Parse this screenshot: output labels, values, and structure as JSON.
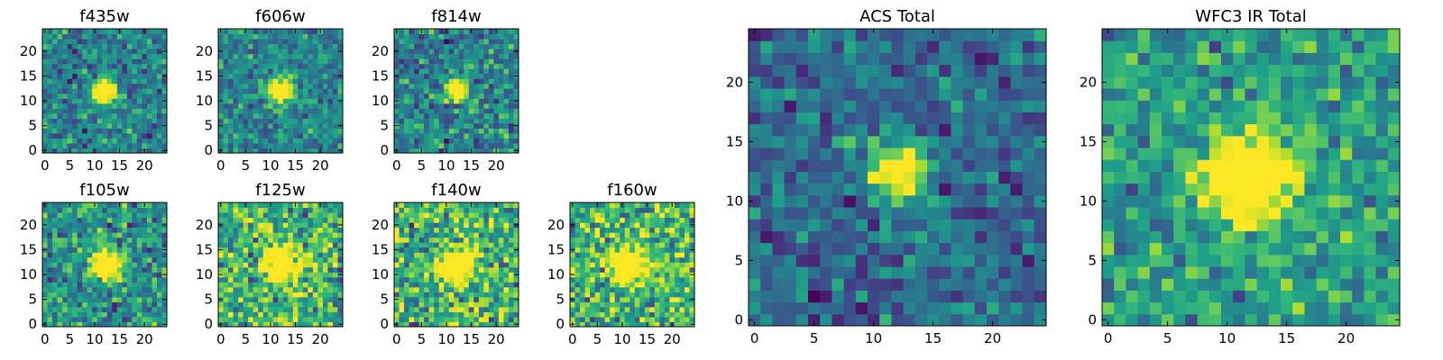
{
  "figure": {
    "colormap": "viridis",
    "background": "#ffffff"
  },
  "chart_data": [
    {
      "type": "heatmap",
      "title": "f435w",
      "grid": [
        25,
        25
      ],
      "xlim": [
        0,
        24
      ],
      "ylim": [
        0,
        24
      ],
      "xticks": [
        0,
        5,
        10,
        15,
        20
      ],
      "yticks": [
        0,
        5,
        10,
        15,
        20
      ],
      "source": {
        "center": [
          12,
          12
        ],
        "sigma": 1.7,
        "peak": 1.0
      },
      "background_level": 0.45,
      "noise": 0.18
    },
    {
      "type": "heatmap",
      "title": "f606w",
      "grid": [
        25,
        25
      ],
      "xlim": [
        0,
        24
      ],
      "ylim": [
        0,
        24
      ],
      "xticks": [
        0,
        5,
        10,
        15,
        20
      ],
      "yticks": [
        0,
        5,
        10,
        15,
        20
      ],
      "source": {
        "center": [
          12,
          12
        ],
        "sigma": 1.7,
        "peak": 1.0
      },
      "background_level": 0.45,
      "noise": 0.16
    },
    {
      "type": "heatmap",
      "title": "f814w",
      "grid": [
        25,
        25
      ],
      "xlim": [
        0,
        24
      ],
      "ylim": [
        0,
        24
      ],
      "xticks": [
        0,
        5,
        10,
        15,
        20
      ],
      "yticks": [
        0,
        5,
        10,
        15,
        20
      ],
      "source": {
        "center": [
          12,
          12
        ],
        "sigma": 1.5,
        "peak": 0.95
      },
      "background_level": 0.45,
      "noise": 0.2
    },
    {
      "type": "heatmap",
      "title": "f105w",
      "grid": [
        25,
        25
      ],
      "xlim": [
        0,
        24
      ],
      "ylim": [
        0,
        24
      ],
      "xticks": [
        0,
        5,
        10,
        15,
        20
      ],
      "yticks": [
        0,
        5,
        10,
        15,
        20
      ],
      "source": {
        "center": [
          12.5,
          12.5
        ],
        "sigma": 2.2,
        "peak": 0.95
      },
      "background_level": 0.5,
      "noise": 0.2
    },
    {
      "type": "heatmap",
      "title": "f125w",
      "grid": [
        25,
        25
      ],
      "xlim": [
        0,
        24
      ],
      "ylim": [
        0,
        24
      ],
      "xticks": [
        0,
        5,
        10,
        15,
        20
      ],
      "yticks": [
        0,
        5,
        10,
        15,
        20
      ],
      "source": {
        "center": [
          12,
          12
        ],
        "sigma": 2.5,
        "peak": 0.85
      },
      "background_level": 0.65,
      "noise": 0.25
    },
    {
      "type": "heatmap",
      "title": "f140w",
      "grid": [
        25,
        25
      ],
      "xlim": [
        0,
        24
      ],
      "ylim": [
        0,
        24
      ],
      "xticks": [
        0,
        5,
        10,
        15,
        20
      ],
      "yticks": [
        0,
        5,
        10,
        15,
        20
      ],
      "source": {
        "center": [
          12,
          12
        ],
        "sigma": 2.5,
        "peak": 0.85
      },
      "background_level": 0.65,
      "noise": 0.25
    },
    {
      "type": "heatmap",
      "title": "f160w",
      "grid": [
        25,
        25
      ],
      "xlim": [
        0,
        24
      ],
      "ylim": [
        0,
        24
      ],
      "xticks": [
        0,
        5,
        10,
        15,
        20
      ],
      "yticks": [
        0,
        5,
        10,
        15,
        20
      ],
      "source": {
        "center": [
          11,
          12
        ],
        "sigma": 2.5,
        "peak": 0.85
      },
      "background_level": 0.65,
      "noise": 0.25
    },
    {
      "type": "heatmap",
      "title": "ACS Total",
      "grid": [
        25,
        25
      ],
      "xlim": [
        0,
        24
      ],
      "ylim": [
        0,
        24
      ],
      "xticks": [
        0,
        5,
        10,
        15,
        20
      ],
      "yticks": [
        0,
        5,
        10,
        15,
        20
      ],
      "source": {
        "center": [
          12,
          12.5
        ],
        "sigma": 1.6,
        "peak": 1.0
      },
      "background_level": 0.35,
      "noise": 0.16
    },
    {
      "type": "heatmap",
      "title": "WFC3 IR Total",
      "grid": [
        25,
        25
      ],
      "xlim": [
        0,
        24
      ],
      "ylim": [
        0,
        24
      ],
      "xticks": [
        0,
        5,
        10,
        15,
        20
      ],
      "yticks": [
        0,
        5,
        10,
        15,
        20
      ],
      "source": {
        "center": [
          12,
          12
        ],
        "sigma": 2.6,
        "peak": 0.95
      },
      "background_level": 0.55,
      "noise": 0.17
    }
  ]
}
